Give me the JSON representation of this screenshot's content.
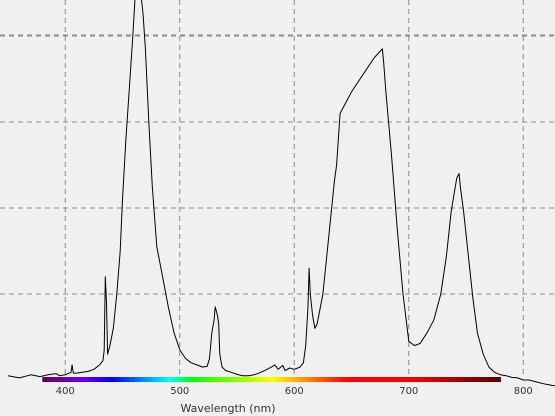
{
  "chart_data": {
    "type": "line",
    "title": "",
    "xlabel": "Wavelength (nm)",
    "ylabel": "",
    "xlim": [
      350,
      830
    ],
    "ylim": [
      0,
      1
    ],
    "x_ticks": [
      400,
      500,
      600,
      700,
      800
    ],
    "x_tick_labels": [
      "400",
      "500",
      "600",
      "700",
      "800"
    ],
    "y_gridlines": [
      0.2,
      0.4,
      0.6,
      0.8
    ],
    "grid": true,
    "legend": "none",
    "spectrum_bar": {
      "from": 380,
      "to": 780
    },
    "series": [
      {
        "color": "#000000",
        "points": [
          [
            350,
            0.01
          ],
          [
            360,
            0.005
          ],
          [
            370,
            0.012
          ],
          [
            378,
            0.008
          ],
          [
            385,
            0.012
          ],
          [
            392,
            0.015
          ],
          [
            395,
            0.01
          ],
          [
            400,
            0.012
          ],
          [
            405,
            0.018
          ],
          [
            406,
            0.035
          ],
          [
            407,
            0.016
          ],
          [
            410,
            0.016
          ],
          [
            415,
            0.018
          ],
          [
            420,
            0.02
          ],
          [
            425,
            0.025
          ],
          [
            430,
            0.035
          ],
          [
            433,
            0.045
          ],
          [
            434,
            0.07
          ],
          [
            435,
            0.24
          ],
          [
            436,
            0.18
          ],
          [
            437,
            0.06
          ],
          [
            439,
            0.08
          ],
          [
            442,
            0.12
          ],
          [
            445,
            0.2
          ],
          [
            448,
            0.3
          ],
          [
            450,
            0.42
          ],
          [
            453,
            0.56
          ],
          [
            456,
            0.68
          ],
          [
            459,
            0.8
          ],
          [
            461,
            0.89
          ],
          [
            463,
            0.92
          ],
          [
            464,
            0.91
          ],
          [
            466,
            0.9
          ],
          [
            468,
            0.85
          ],
          [
            470,
            0.77
          ],
          [
            473,
            0.6
          ],
          [
            476,
            0.45
          ],
          [
            480,
            0.31
          ],
          [
            485,
            0.24
          ],
          [
            490,
            0.17
          ],
          [
            495,
            0.11
          ],
          [
            500,
            0.07
          ],
          [
            505,
            0.05
          ],
          [
            510,
            0.04
          ],
          [
            515,
            0.035
          ],
          [
            520,
            0.03
          ],
          [
            524,
            0.032
          ],
          [
            526,
            0.05
          ],
          [
            528,
            0.11
          ],
          [
            530,
            0.14
          ],
          [
            531,
            0.17
          ],
          [
            532,
            0.16
          ],
          [
            533,
            0.15
          ],
          [
            534,
            0.13
          ],
          [
            535,
            0.06
          ],
          [
            537,
            0.03
          ],
          [
            540,
            0.022
          ],
          [
            545,
            0.018
          ],
          [
            550,
            0.013
          ],
          [
            555,
            0.01
          ],
          [
            560,
            0.01
          ],
          [
            565,
            0.012
          ],
          [
            570,
            0.017
          ],
          [
            575,
            0.023
          ],
          [
            580,
            0.03
          ],
          [
            583,
            0.035
          ],
          [
            586,
            0.025
          ],
          [
            590,
            0.034
          ],
          [
            592,
            0.022
          ],
          [
            596,
            0.028
          ],
          [
            600,
            0.025
          ],
          [
            605,
            0.03
          ],
          [
            608,
            0.04
          ],
          [
            610,
            0.08
          ],
          [
            612,
            0.17
          ],
          [
            613,
            0.26
          ],
          [
            614,
            0.2
          ],
          [
            616,
            0.15
          ],
          [
            618,
            0.12
          ],
          [
            620,
            0.13
          ],
          [
            625,
            0.2
          ],
          [
            630,
            0.33
          ],
          [
            635,
            0.46
          ],
          [
            637,
            0.5
          ],
          [
            640,
            0.62
          ],
          [
            650,
            0.67
          ],
          [
            660,
            0.71
          ],
          [
            670,
            0.75
          ],
          [
            677,
            0.77
          ],
          [
            678,
            0.74
          ],
          [
            680,
            0.67
          ],
          [
            685,
            0.52
          ],
          [
            690,
            0.35
          ],
          [
            695,
            0.2
          ],
          [
            700,
            0.09
          ],
          [
            705,
            0.08
          ],
          [
            710,
            0.085
          ],
          [
            716,
            0.11
          ],
          [
            722,
            0.14
          ],
          [
            728,
            0.2
          ],
          [
            733,
            0.29
          ],
          [
            737,
            0.39
          ],
          [
            740,
            0.44
          ],
          [
            742,
            0.47
          ],
          [
            744,
            0.48
          ],
          [
            745,
            0.45
          ],
          [
            748,
            0.39
          ],
          [
            752,
            0.29
          ],
          [
            756,
            0.19
          ],
          [
            760,
            0.11
          ],
          [
            765,
            0.06
          ],
          [
            770,
            0.03
          ],
          [
            775,
            0.018
          ],
          [
            780,
            0.012
          ],
          [
            785,
            0.01
          ],
          [
            790,
            0.006
          ],
          [
            795,
            0.005
          ],
          [
            800,
            0.0
          ],
          [
            805,
            0.0
          ],
          [
            812,
            -0.005
          ],
          [
            820,
            -0.01
          ],
          [
            830,
            -0.015
          ]
        ]
      }
    ]
  }
}
